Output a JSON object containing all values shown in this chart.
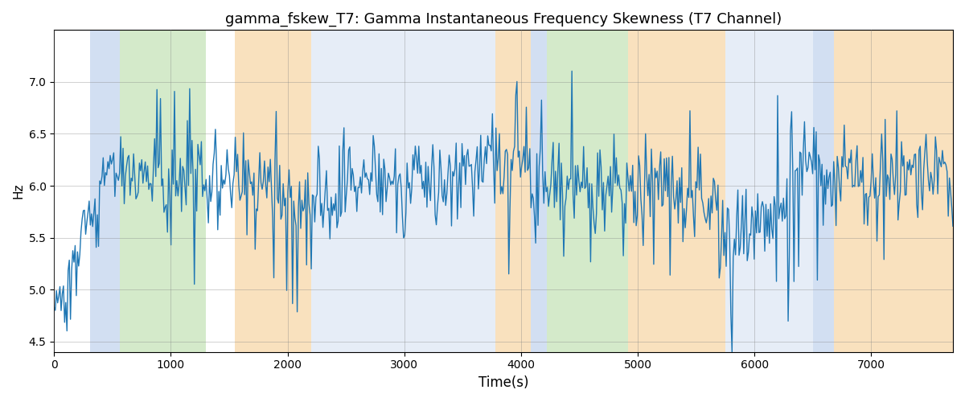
{
  "title": "gamma_fskew_T7: Gamma Instantaneous Frequency Skewness (T7 Channel)",
  "xlabel": "Time(s)",
  "ylabel": "Hz",
  "ylim": [
    4.4,
    7.5
  ],
  "xlim": [
    0,
    7700
  ],
  "line_color": "#1f77b4",
  "line_width": 1.0,
  "bg_bands": [
    {
      "xmin": 310,
      "xmax": 560,
      "color": "#aec6e8",
      "alpha": 0.55
    },
    {
      "xmin": 560,
      "xmax": 1300,
      "color": "#b2d9a0",
      "alpha": 0.55
    },
    {
      "xmin": 1550,
      "xmax": 2200,
      "color": "#f5c98a",
      "alpha": 0.55
    },
    {
      "xmin": 2200,
      "xmax": 3780,
      "color": "#c9d9ef",
      "alpha": 0.45
    },
    {
      "xmin": 3780,
      "xmax": 4080,
      "color": "#f5c98a",
      "alpha": 0.55
    },
    {
      "xmin": 4080,
      "xmax": 4220,
      "color": "#aec6e8",
      "alpha": 0.55
    },
    {
      "xmin": 4220,
      "xmax": 4920,
      "color": "#b2d9a0",
      "alpha": 0.55
    },
    {
      "xmin": 4920,
      "xmax": 5750,
      "color": "#f5c98a",
      "alpha": 0.55
    },
    {
      "xmin": 5750,
      "xmax": 6500,
      "color": "#c9d9ef",
      "alpha": 0.45
    },
    {
      "xmin": 6500,
      "xmax": 6680,
      "color": "#aec6e8",
      "alpha": 0.55
    },
    {
      "xmin": 6680,
      "xmax": 7700,
      "color": "#f5c98a",
      "alpha": 0.55
    }
  ],
  "seed": 42,
  "n_points": 770,
  "grid": true,
  "title_fontsize": 13
}
